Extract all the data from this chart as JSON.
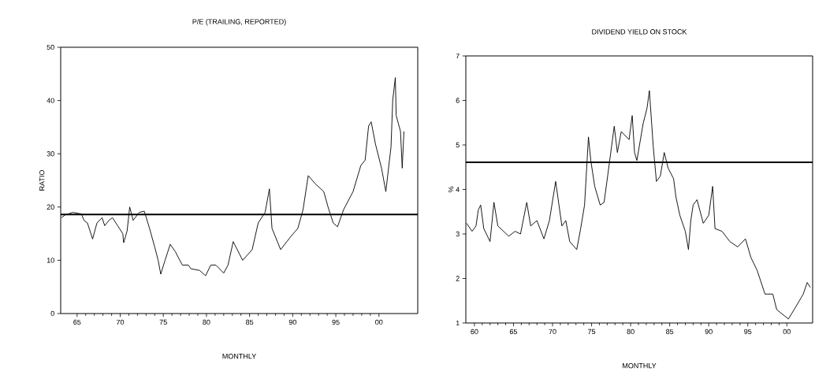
{
  "chart_data": [
    {
      "type": "line",
      "title": "P/E (TRAILING, REPORTED)",
      "xlabel": "MONTHLY",
      "ylabel": "RATIO",
      "xlim": [
        1963.1,
        2004.5
      ],
      "ylim": [
        0,
        50
      ],
      "xticks": [
        {
          "value": 1965,
          "label": "65"
        },
        {
          "value": 1970,
          "label": "70"
        },
        {
          "value": 1975,
          "label": "75"
        },
        {
          "value": 1980,
          "label": "80"
        },
        {
          "value": 1985,
          "label": "85"
        },
        {
          "value": 1990,
          "label": "90"
        },
        {
          "value": 1995,
          "label": "95"
        },
        {
          "value": 2000,
          "label": "00"
        }
      ],
      "yticks": [
        0,
        10,
        20,
        30,
        40,
        50
      ],
      "ref_lines": [
        {
          "axis": "y",
          "value": 18.6,
          "color": "#000000"
        }
      ],
      "series": [
        {
          "color": "#000000",
          "x": [
            1963.2,
            1963.6,
            1964.5,
            1965.5,
            1965.8,
            1966.2,
            1966.8,
            1967.3,
            1967.9,
            1968.2,
            1968.7,
            1969.1,
            1969.7,
            1970.3,
            1970.4,
            1970.8,
            1971.1,
            1971.5,
            1972.2,
            1972.8,
            1973.4,
            1974.0,
            1974.4,
            1974.7,
            1975.2,
            1975.8,
            1976.4,
            1977.2,
            1977.9,
            1978.2,
            1979.2,
            1979.9,
            1980.5,
            1981.1,
            1982.0,
            1982.5,
            1983.1,
            1984.2,
            1985.3,
            1986.0,
            1986.8,
            1987.3,
            1987.6,
            1988.6,
            1989.8,
            1990.6,
            1991.2,
            1991.8,
            1992.6,
            1993.6,
            1994.1,
            1994.7,
            1995.2,
            1995.9,
            1997.0,
            1997.9,
            1998.4,
            1998.8,
            1999.1,
            1999.6,
            2000.3,
            2000.8,
            2001.4,
            2001.6,
            2001.9,
            2002.0,
            2002.5,
            2002.7,
            2002.9
          ],
          "values": [
            18.0,
            18.5,
            19,
            18.7,
            17.5,
            17,
            14,
            17,
            18,
            16.5,
            17.5,
            18,
            16.5,
            15,
            13.3,
            15.5,
            20,
            17.5,
            19,
            19.2,
            16,
            12.5,
            10,
            7.4,
            10,
            13,
            11.6,
            9.1,
            9.1,
            8.4,
            8.1,
            7.1,
            9.1,
            9.1,
            7.6,
            9.1,
            13.5,
            10,
            12,
            17,
            19,
            23.4,
            16,
            12,
            14.5,
            16,
            19.5,
            25.9,
            24.4,
            22.9,
            20,
            17,
            16.3,
            19.5,
            22.9,
            27.8,
            28.8,
            35.2,
            36,
            31.8,
            27.3,
            22.9,
            31.3,
            40.1,
            44.3,
            37.2,
            34.2,
            27.3,
            34.2
          ]
        }
      ]
    },
    {
      "type": "line",
      "title": "DIVIDEND YIELD ON STOCK",
      "xlabel": "MONTHLY",
      "ylabel": "%",
      "xlim": [
        1958.9,
        2003.3
      ],
      "ylim": [
        1,
        7
      ],
      "xticks": [
        {
          "value": 1960,
          "label": "60"
        },
        {
          "value": 1965,
          "label": "65"
        },
        {
          "value": 1970,
          "label": "70"
        },
        {
          "value": 1975,
          "label": "75"
        },
        {
          "value": 1980,
          "label": "80"
        },
        {
          "value": 1985,
          "label": "85"
        },
        {
          "value": 1990,
          "label": "90"
        },
        {
          "value": 1995,
          "label": "95"
        },
        {
          "value": 2000,
          "label": "00"
        }
      ],
      "yticks": [
        1,
        2,
        3,
        4,
        5,
        6,
        7
      ],
      "ref_lines": [
        {
          "axis": "y",
          "value": 4.61,
          "color": "#000000"
        }
      ],
      "series": [
        {
          "color": "#000000",
          "x": [
            1959.0,
            1959.7,
            1960.2,
            1960.5,
            1960.8,
            1961.2,
            1962.0,
            1962.5,
            1963.0,
            1964.4,
            1965.2,
            1965.9,
            1966.7,
            1967.2,
            1968.0,
            1968.9,
            1969.6,
            1970.4,
            1971.2,
            1971.7,
            1972.2,
            1973.1,
            1973.6,
            1974.1,
            1974.6,
            1974.9,
            1975.4,
            1976.1,
            1976.6,
            1977.1,
            1977.9,
            1978.3,
            1978.8,
            1979.8,
            1980.2,
            1980.5,
            1980.8,
            1981.6,
            1982.1,
            1982.4,
            1982.9,
            1983.3,
            1983.8,
            1984.3,
            1984.8,
            1985.5,
            1985.8,
            1986.3,
            1987.0,
            1987.4,
            1987.7,
            1988.0,
            1988.5,
            1989.3,
            1990.0,
            1990.5,
            1990.8,
            1991.7,
            1992.7,
            1993.7,
            1994.7,
            1995.4,
            1996.2,
            1997.2,
            1998.2,
            1998.7,
            2000.2,
            2001.1,
            2002.1,
            2002.6,
            2003.0
          ],
          "values": [
            3.24,
            3.06,
            3.18,
            3.54,
            3.65,
            3.12,
            2.83,
            3.71,
            3.18,
            2.95,
            3.06,
            3.0,
            3.71,
            3.18,
            3.3,
            2.89,
            3.3,
            4.18,
            3.18,
            3.3,
            2.83,
            2.65,
            3.12,
            3.65,
            5.18,
            4.65,
            4.07,
            3.65,
            3.71,
            4.36,
            5.42,
            4.83,
            5.3,
            5.12,
            5.66,
            4.83,
            4.65,
            5.48,
            5.83,
            6.22,
            4.95,
            4.18,
            4.3,
            4.83,
            4.48,
            4.24,
            3.83,
            3.42,
            3.06,
            2.65,
            3.3,
            3.65,
            3.77,
            3.24,
            3.42,
            4.07,
            3.12,
            3.06,
            2.83,
            2.71,
            2.89,
            2.47,
            2.18,
            1.65,
            1.65,
            1.3,
            1.09,
            1.35,
            1.65,
            1.91,
            1.8
          ]
        }
      ]
    }
  ]
}
